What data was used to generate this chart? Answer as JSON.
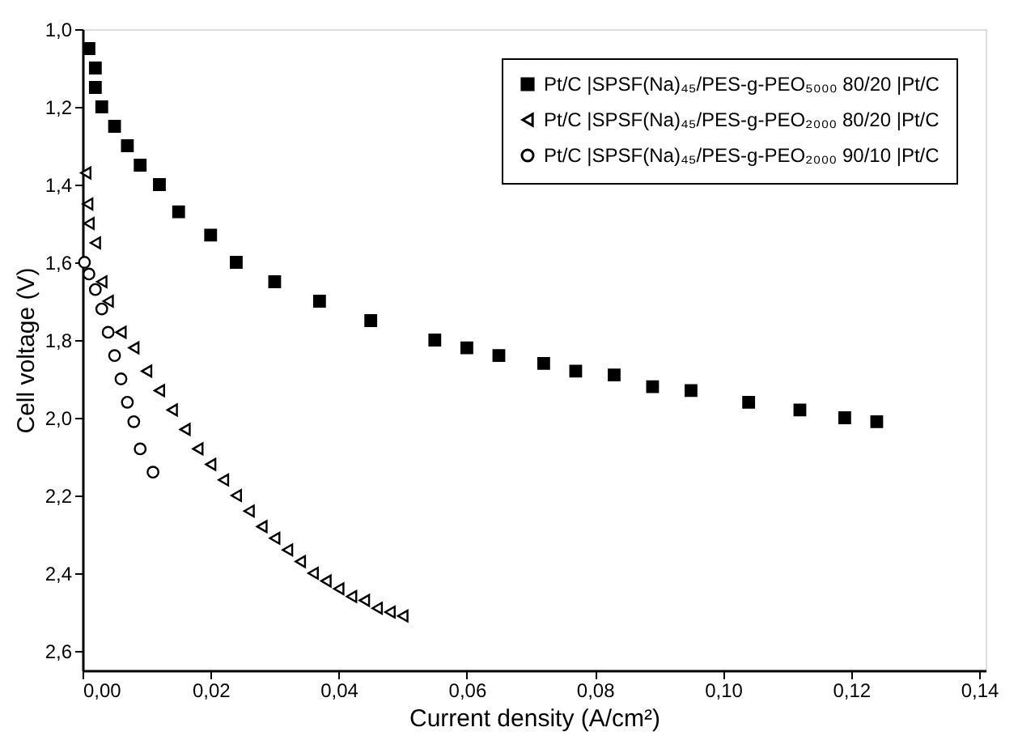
{
  "chart_data": {
    "type": "scatter",
    "xlabel": "Current density (A/cm²)",
    "ylabel": "Cell voltage (V)",
    "xlim": [
      0,
      0.141
    ],
    "ylim": [
      2.65,
      1.0
    ],
    "xticks": [
      {
        "value": 0,
        "label": "0,00"
      },
      {
        "value": 0.02,
        "label": "0,02"
      },
      {
        "value": 0.04,
        "label": "0,04"
      },
      {
        "value": 0.06,
        "label": "0,06"
      },
      {
        "value": 0.08,
        "label": "0,08"
      },
      {
        "value": 0.1,
        "label": "0,10"
      },
      {
        "value": 0.12,
        "label": "0,12"
      },
      {
        "value": 0.14,
        "label": "0,14"
      }
    ],
    "yticks": [
      {
        "value": 1.0,
        "label": "1,0"
      },
      {
        "value": 1.2,
        "label": "1,2"
      },
      {
        "value": 1.4,
        "label": "1,4"
      },
      {
        "value": 1.6,
        "label": "1,6"
      },
      {
        "value": 1.8,
        "label": "1,8"
      },
      {
        "value": 2.0,
        "label": "2,0"
      },
      {
        "value": 2.2,
        "label": "2,2"
      },
      {
        "value": 2.4,
        "label": "2,4"
      },
      {
        "value": 2.6,
        "label": "2,6"
      }
    ],
    "grid": false,
    "legend": "top right",
    "series": [
      {
        "name": "Pt/C |SPSF(Na)₄₅/PES-g-PEO₅₀₀₀ 80/20 |Pt/C",
        "color": "#000000",
        "marker": "square",
        "x": [
          0.001,
          0.002,
          0.002,
          0.003,
          0.005,
          0.007,
          0.009,
          0.012,
          0.015,
          0.02,
          0.024,
          0.03,
          0.037,
          0.045,
          0.055,
          0.06,
          0.065,
          0.072,
          0.077,
          0.083,
          0.089,
          0.095,
          0.104,
          0.112,
          0.119,
          0.124
        ],
        "values": [
          1.05,
          1.1,
          1.15,
          1.2,
          1.25,
          1.3,
          1.35,
          1.4,
          1.47,
          1.53,
          1.6,
          1.65,
          1.7,
          1.75,
          1.8,
          1.82,
          1.84,
          1.86,
          1.88,
          1.89,
          1.92,
          1.93,
          1.96,
          1.98,
          2.0,
          2.01
        ]
      },
      {
        "name": "Pt/C |SPSF(Na)₄₅/PES-g-PEO₂₀₀₀ 80/20 |Pt/C",
        "color": "#000000",
        "marker": "triangle",
        "x": [
          0.0005,
          0.0008,
          0.001,
          0.002,
          0.003,
          0.004,
          0.006,
          0.008,
          0.01,
          0.012,
          0.014,
          0.016,
          0.018,
          0.02,
          0.022,
          0.024,
          0.026,
          0.028,
          0.03,
          0.032,
          0.034,
          0.036,
          0.038,
          0.04,
          0.042,
          0.044,
          0.046,
          0.048,
          0.05
        ],
        "values": [
          1.37,
          1.45,
          1.5,
          1.55,
          1.65,
          1.7,
          1.78,
          1.82,
          1.88,
          1.93,
          1.98,
          2.03,
          2.08,
          2.12,
          2.16,
          2.2,
          2.24,
          2.28,
          2.31,
          2.34,
          2.37,
          2.4,
          2.42,
          2.44,
          2.46,
          2.47,
          2.49,
          2.5,
          2.51
        ]
      },
      {
        "name": "Pt/C |SPSF(Na)₄₅/PES-g-PEO₂₀₀₀ 90/10 |Pt/C",
        "color": "#000000",
        "marker": "circle",
        "x": [
          0.0003,
          0.001,
          0.002,
          0.003,
          0.004,
          0.005,
          0.006,
          0.007,
          0.008,
          0.009,
          0.011
        ],
        "values": [
          1.6,
          1.63,
          1.67,
          1.72,
          1.78,
          1.84,
          1.9,
          1.96,
          2.01,
          2.08,
          2.14
        ]
      }
    ]
  }
}
